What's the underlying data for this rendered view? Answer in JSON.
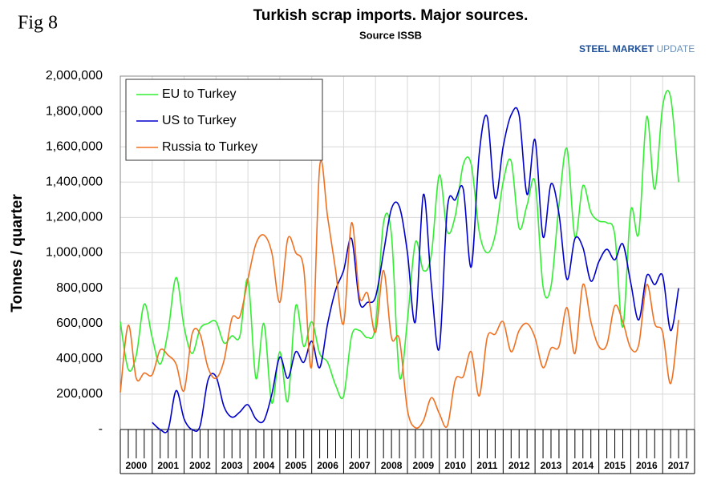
{
  "figure_label": "Fig 8",
  "logo": {
    "strong": "STEEL MARKET",
    "light": "UPDATE"
  },
  "chart_data": {
    "type": "line",
    "title": "Turkish scrap imports. Major sources.",
    "subtitle": "Source ISSB",
    "y_label": "Tonnes / quarter",
    "x": [
      2000,
      2000.25,
      2000.5,
      2000.75,
      2001,
      2001.25,
      2001.5,
      2001.75,
      2002,
      2002.25,
      2002.5,
      2002.75,
      2003,
      2003.25,
      2003.5,
      2003.75,
      2004,
      2004.25,
      2004.5,
      2004.75,
      2005,
      2005.25,
      2005.5,
      2005.75,
      2006,
      2006.25,
      2006.5,
      2006.75,
      2007,
      2007.25,
      2007.5,
      2007.75,
      2008,
      2008.25,
      2008.5,
      2008.75,
      2009,
      2009.25,
      2009.5,
      2009.75,
      2010,
      2010.25,
      2010.5,
      2010.75,
      2011,
      2011.25,
      2011.5,
      2011.75,
      2012,
      2012.25,
      2012.5,
      2012.75,
      2013,
      2013.25,
      2013.5,
      2013.75,
      2014,
      2014.25,
      2014.5,
      2014.75,
      2015,
      2015.25,
      2015.5,
      2015.75,
      2016,
      2016.25,
      2016.5,
      2016.75,
      2017,
      2017.25,
      2017.5
    ],
    "series": [
      {
        "name": "EU to Turkey",
        "color": "#33ee33",
        "values": [
          610000,
          340000,
          420000,
          710000,
          520000,
          370000,
          560000,
          860000,
          580000,
          430000,
          570000,
          600000,
          610000,
          490000,
          530000,
          530000,
          850000,
          290000,
          600000,
          150000,
          440000,
          160000,
          700000,
          470000,
          610000,
          430000,
          380000,
          250000,
          190000,
          530000,
          560000,
          520000,
          590000,
          1170000,
          1100000,
          300000,
          620000,
          1060000,
          900000,
          990000,
          1440000,
          1120000,
          1210000,
          1500000,
          1500000,
          1120000,
          1000000,
          1100000,
          1400000,
          1520000,
          1140000,
          1270000,
          1400000,
          810000,
          810000,
          1270000,
          1590000,
          1090000,
          1380000,
          1230000,
          1180000,
          1170000,
          1100000,
          580000,
          1240000,
          1110000,
          1770000,
          1360000,
          1830000,
          1880000,
          1400000
        ]
      },
      {
        "name": "US to Turkey",
        "color": "#0000cc",
        "values": [
          null,
          null,
          null,
          null,
          40000,
          0,
          0,
          220000,
          60000,
          0,
          20000,
          280000,
          300000,
          130000,
          70000,
          100000,
          140000,
          60000,
          50000,
          200000,
          410000,
          290000,
          440000,
          380000,
          500000,
          350000,
          600000,
          790000,
          900000,
          1080000,
          720000,
          720000,
          750000,
          1000000,
          1250000,
          1260000,
          1000000,
          610000,
          1330000,
          820000,
          460000,
          1250000,
          1300000,
          1360000,
          920000,
          1560000,
          1770000,
          1310000,
          1600000,
          1780000,
          1780000,
          1330000,
          1640000,
          1090000,
          1390000,
          1220000,
          850000,
          1080000,
          1030000,
          840000,
          950000,
          1020000,
          960000,
          1050000,
          830000,
          620000,
          870000,
          820000,
          870000,
          560000,
          800000
        ]
      },
      {
        "name": "Russia to Turkey",
        "color": "#f07020",
        "values": [
          210000,
          590000,
          290000,
          320000,
          310000,
          450000,
          420000,
          370000,
          220000,
          540000,
          540000,
          350000,
          290000,
          390000,
          630000,
          640000,
          850000,
          1050000,
          1100000,
          1000000,
          720000,
          1080000,
          1000000,
          910000,
          360000,
          1490000,
          1200000,
          900000,
          600000,
          1170000,
          750000,
          770000,
          550000,
          900000,
          520000,
          510000,
          110000,
          10000,
          50000,
          180000,
          90000,
          20000,
          280000,
          300000,
          440000,
          190000,
          520000,
          540000,
          610000,
          440000,
          560000,
          600000,
          520000,
          350000,
          460000,
          470000,
          690000,
          430000,
          820000,
          610000,
          470000,
          480000,
          700000,
          610000,
          460000,
          480000,
          820000,
          600000,
          550000,
          260000,
          620000
        ]
      }
    ],
    "xlim": [
      2000,
      2018
    ],
    "xticks": [
      {
        "value": 2000.5,
        "label": "2000"
      },
      {
        "value": 2001.5,
        "label": "2001"
      },
      {
        "value": 2002.5,
        "label": "2002"
      },
      {
        "value": 2003.5,
        "label": "2003"
      },
      {
        "value": 2004.5,
        "label": "2004"
      },
      {
        "value": 2005.5,
        "label": "2005"
      },
      {
        "value": 2006.5,
        "label": "2006"
      },
      {
        "value": 2007.5,
        "label": "2007"
      },
      {
        "value": 2008.5,
        "label": "2008"
      },
      {
        "value": 2009.5,
        "label": "2009"
      },
      {
        "value": 2010.5,
        "label": "2010"
      },
      {
        "value": 2011.5,
        "label": "2011"
      },
      {
        "value": 2012.5,
        "label": "2012"
      },
      {
        "value": 2013.5,
        "label": "2013"
      },
      {
        "value": 2014.5,
        "label": "2014"
      },
      {
        "value": 2015.5,
        "label": "2015"
      },
      {
        "value": 2016.5,
        "label": "2016"
      },
      {
        "value": 2017.5,
        "label": "2017"
      }
    ],
    "ylim": [
      0,
      2000000
    ],
    "yticks": [
      {
        "value": 0,
        "label": "-"
      },
      {
        "value": 200000,
        "label": "200,000"
      },
      {
        "value": 400000,
        "label": "400,000"
      },
      {
        "value": 600000,
        "label": "600,000"
      },
      {
        "value": 800000,
        "label": "800,000"
      },
      {
        "value": 1000000,
        "label": "1,000,000"
      },
      {
        "value": 1200000,
        "label": "1,200,000"
      },
      {
        "value": 1400000,
        "label": "1,400,000"
      },
      {
        "value": 1600000,
        "label": "1,600,000"
      },
      {
        "value": 1800000,
        "label": "1,800,000"
      },
      {
        "value": 2000000,
        "label": "2,000,000"
      }
    ],
    "grid": true,
    "legend": "upper left"
  }
}
